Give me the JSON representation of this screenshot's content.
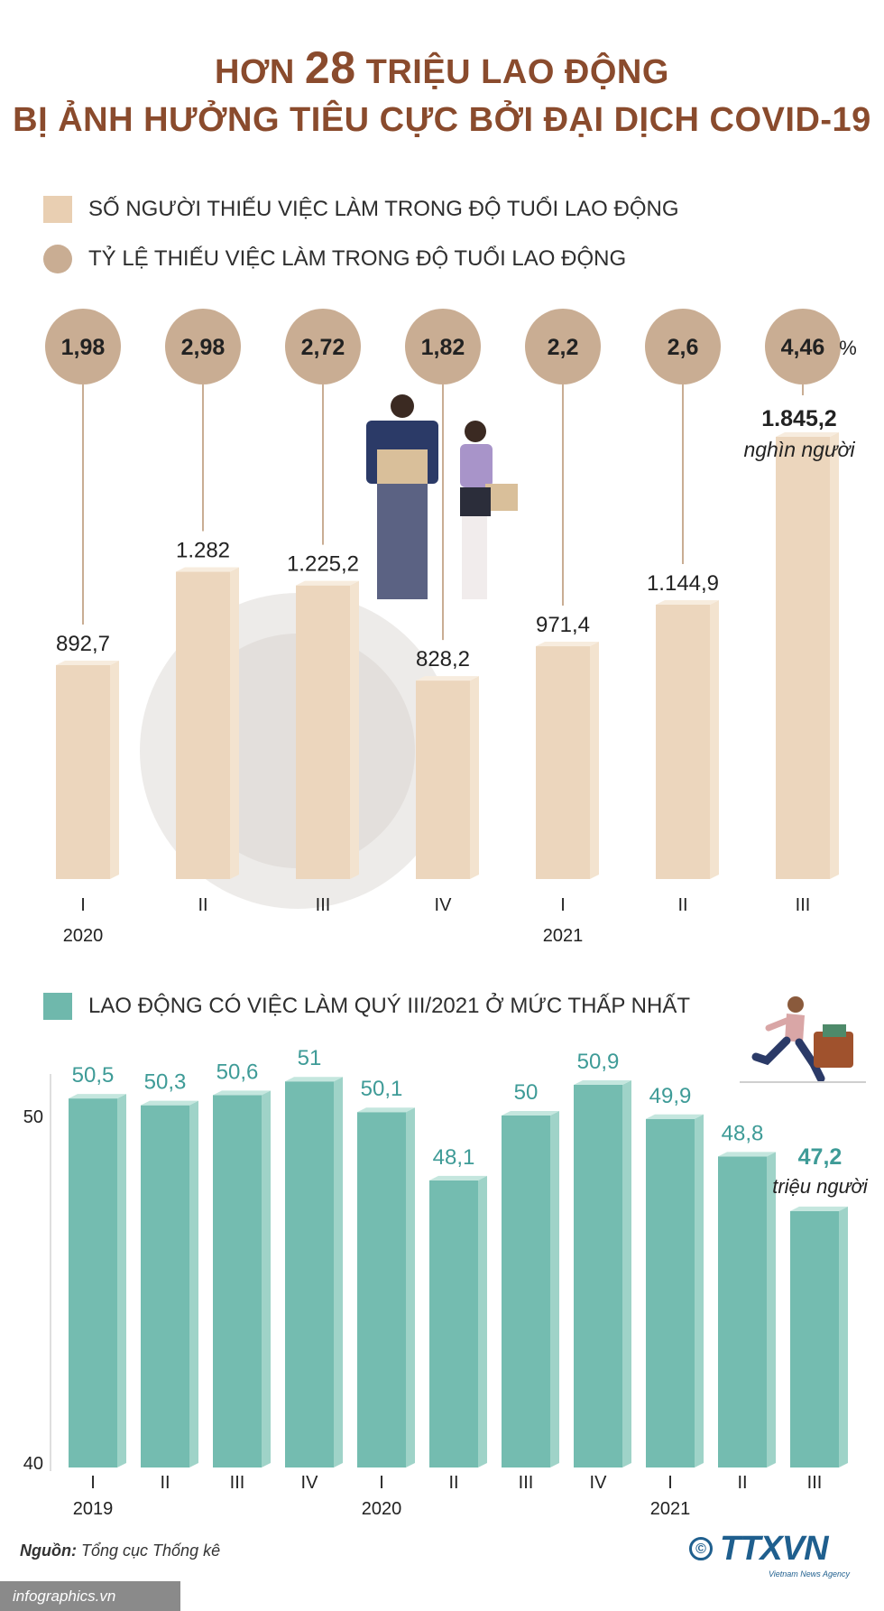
{
  "title": {
    "line1_pre": "HƠN",
    "line1_num": "28",
    "line1_post": "TRIỆU LAO ĐỘNG",
    "line2": "BỊ ẢNH HƯỞNG TIÊU CỰC BỞI ĐẠI DỊCH COVID-19"
  },
  "legend": {
    "underemployed_count": "SỐ NGƯỜI THIẾU VIỆC LÀM TRONG ĐỘ TUỔI LAO ĐỘNG",
    "underemployed_rate": "TỶ LỆ THIẾU VIỆC LÀM TRONG ĐỘ TUỔI LAO ĐỘNG",
    "employed": "LAO ĐỘNG CÓ VIỆC LÀM QUÝ III/2021 Ở MỨC THẤP NHẤT"
  },
  "colors": {
    "title": "#8a4b2d",
    "bar_tan": "#e9cfb2",
    "circle_tan": "#c9ad93",
    "bar_teal": "#6fb8ac",
    "teal_text": "#3e9b97"
  },
  "chart_data": [
    {
      "type": "bar",
      "title": "SỐ NGƯỜI THIẾU VIỆC LÀM TRONG ĐỘ TUỔI LAO ĐỘNG",
      "categories": [
        "I",
        "II",
        "III",
        "IV",
        "I",
        "II",
        "III"
      ],
      "year_labels": [
        {
          "index": 0,
          "label": "2020"
        },
        {
          "index": 4,
          "label": "2021"
        }
      ],
      "series": [
        {
          "name": "Số người thiếu việc làm (nghìn người)",
          "values": [
            892.7,
            1282,
            1225.2,
            828.2,
            971.4,
            1144.9,
            1845.2
          ],
          "labels": [
            "892,7",
            "1.282",
            "1.225,2",
            "828,2",
            "971,4",
            "1.144,9",
            "1.845,2"
          ]
        },
        {
          "name": "Tỷ lệ thiếu việc làm (%)",
          "values": [
            1.98,
            2.98,
            2.72,
            1.82,
            2.2,
            2.6,
            4.46
          ],
          "labels": [
            "1,98",
            "2,98",
            "2,72",
            "1,82",
            "2,2",
            "2,6",
            "4,46"
          ]
        }
      ],
      "unit_rate": "%",
      "unit_count": "nghìn người",
      "ylim": [
        0,
        1900
      ]
    },
    {
      "type": "bar",
      "title": "LAO ĐỘNG CÓ VIỆC LÀM QUÝ III/2021 Ở MỨC THẤP NHẤT",
      "categories": [
        "I",
        "II",
        "III",
        "IV",
        "I",
        "II",
        "III",
        "IV",
        "I",
        "II",
        "III"
      ],
      "year_labels": [
        {
          "index": 0,
          "label": "2019"
        },
        {
          "index": 4,
          "label": "2020"
        },
        {
          "index": 8,
          "label": "2021"
        }
      ],
      "values": [
        50.5,
        50.3,
        50.6,
        51,
        50.1,
        48.1,
        50,
        50.9,
        49.9,
        48.8,
        47.2
      ],
      "labels": [
        "50,5",
        "50,3",
        "50,6",
        "51",
        "50,1",
        "48,1",
        "50",
        "50,9",
        "49,9",
        "48,8",
        "47,2"
      ],
      "unit": "triệu người",
      "yticks": [
        "50",
        "40"
      ],
      "ylim": [
        40,
        52
      ]
    }
  ],
  "source": {
    "label": "Nguồn:",
    "text": "Tổng cục Thống kê"
  },
  "footer": "infographics.vn",
  "logo": {
    "copyright": "©",
    "brand": "TTXVN",
    "sub": "Vietnam News Agency"
  }
}
